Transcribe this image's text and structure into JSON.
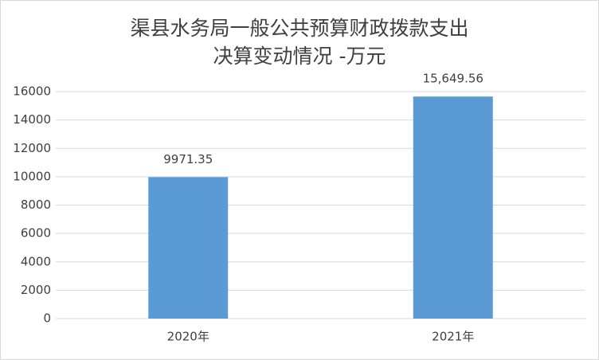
{
  "chart_data": {
    "type": "bar",
    "title": [
      "渠县水务局一般公共预算财政拨款支出",
      "决算变动情况 -万元"
    ],
    "categories": [
      "2020年",
      "2021年"
    ],
    "values": [
      9971.35,
      15649.56
    ],
    "value_labels": [
      "9971.35",
      "15,649.56"
    ],
    "color": "#5b9bd5",
    "ylim": [
      0,
      16000
    ],
    "yticks": [
      0,
      2000,
      4000,
      6000,
      8000,
      10000,
      12000,
      14000,
      16000
    ],
    "grid": true
  }
}
